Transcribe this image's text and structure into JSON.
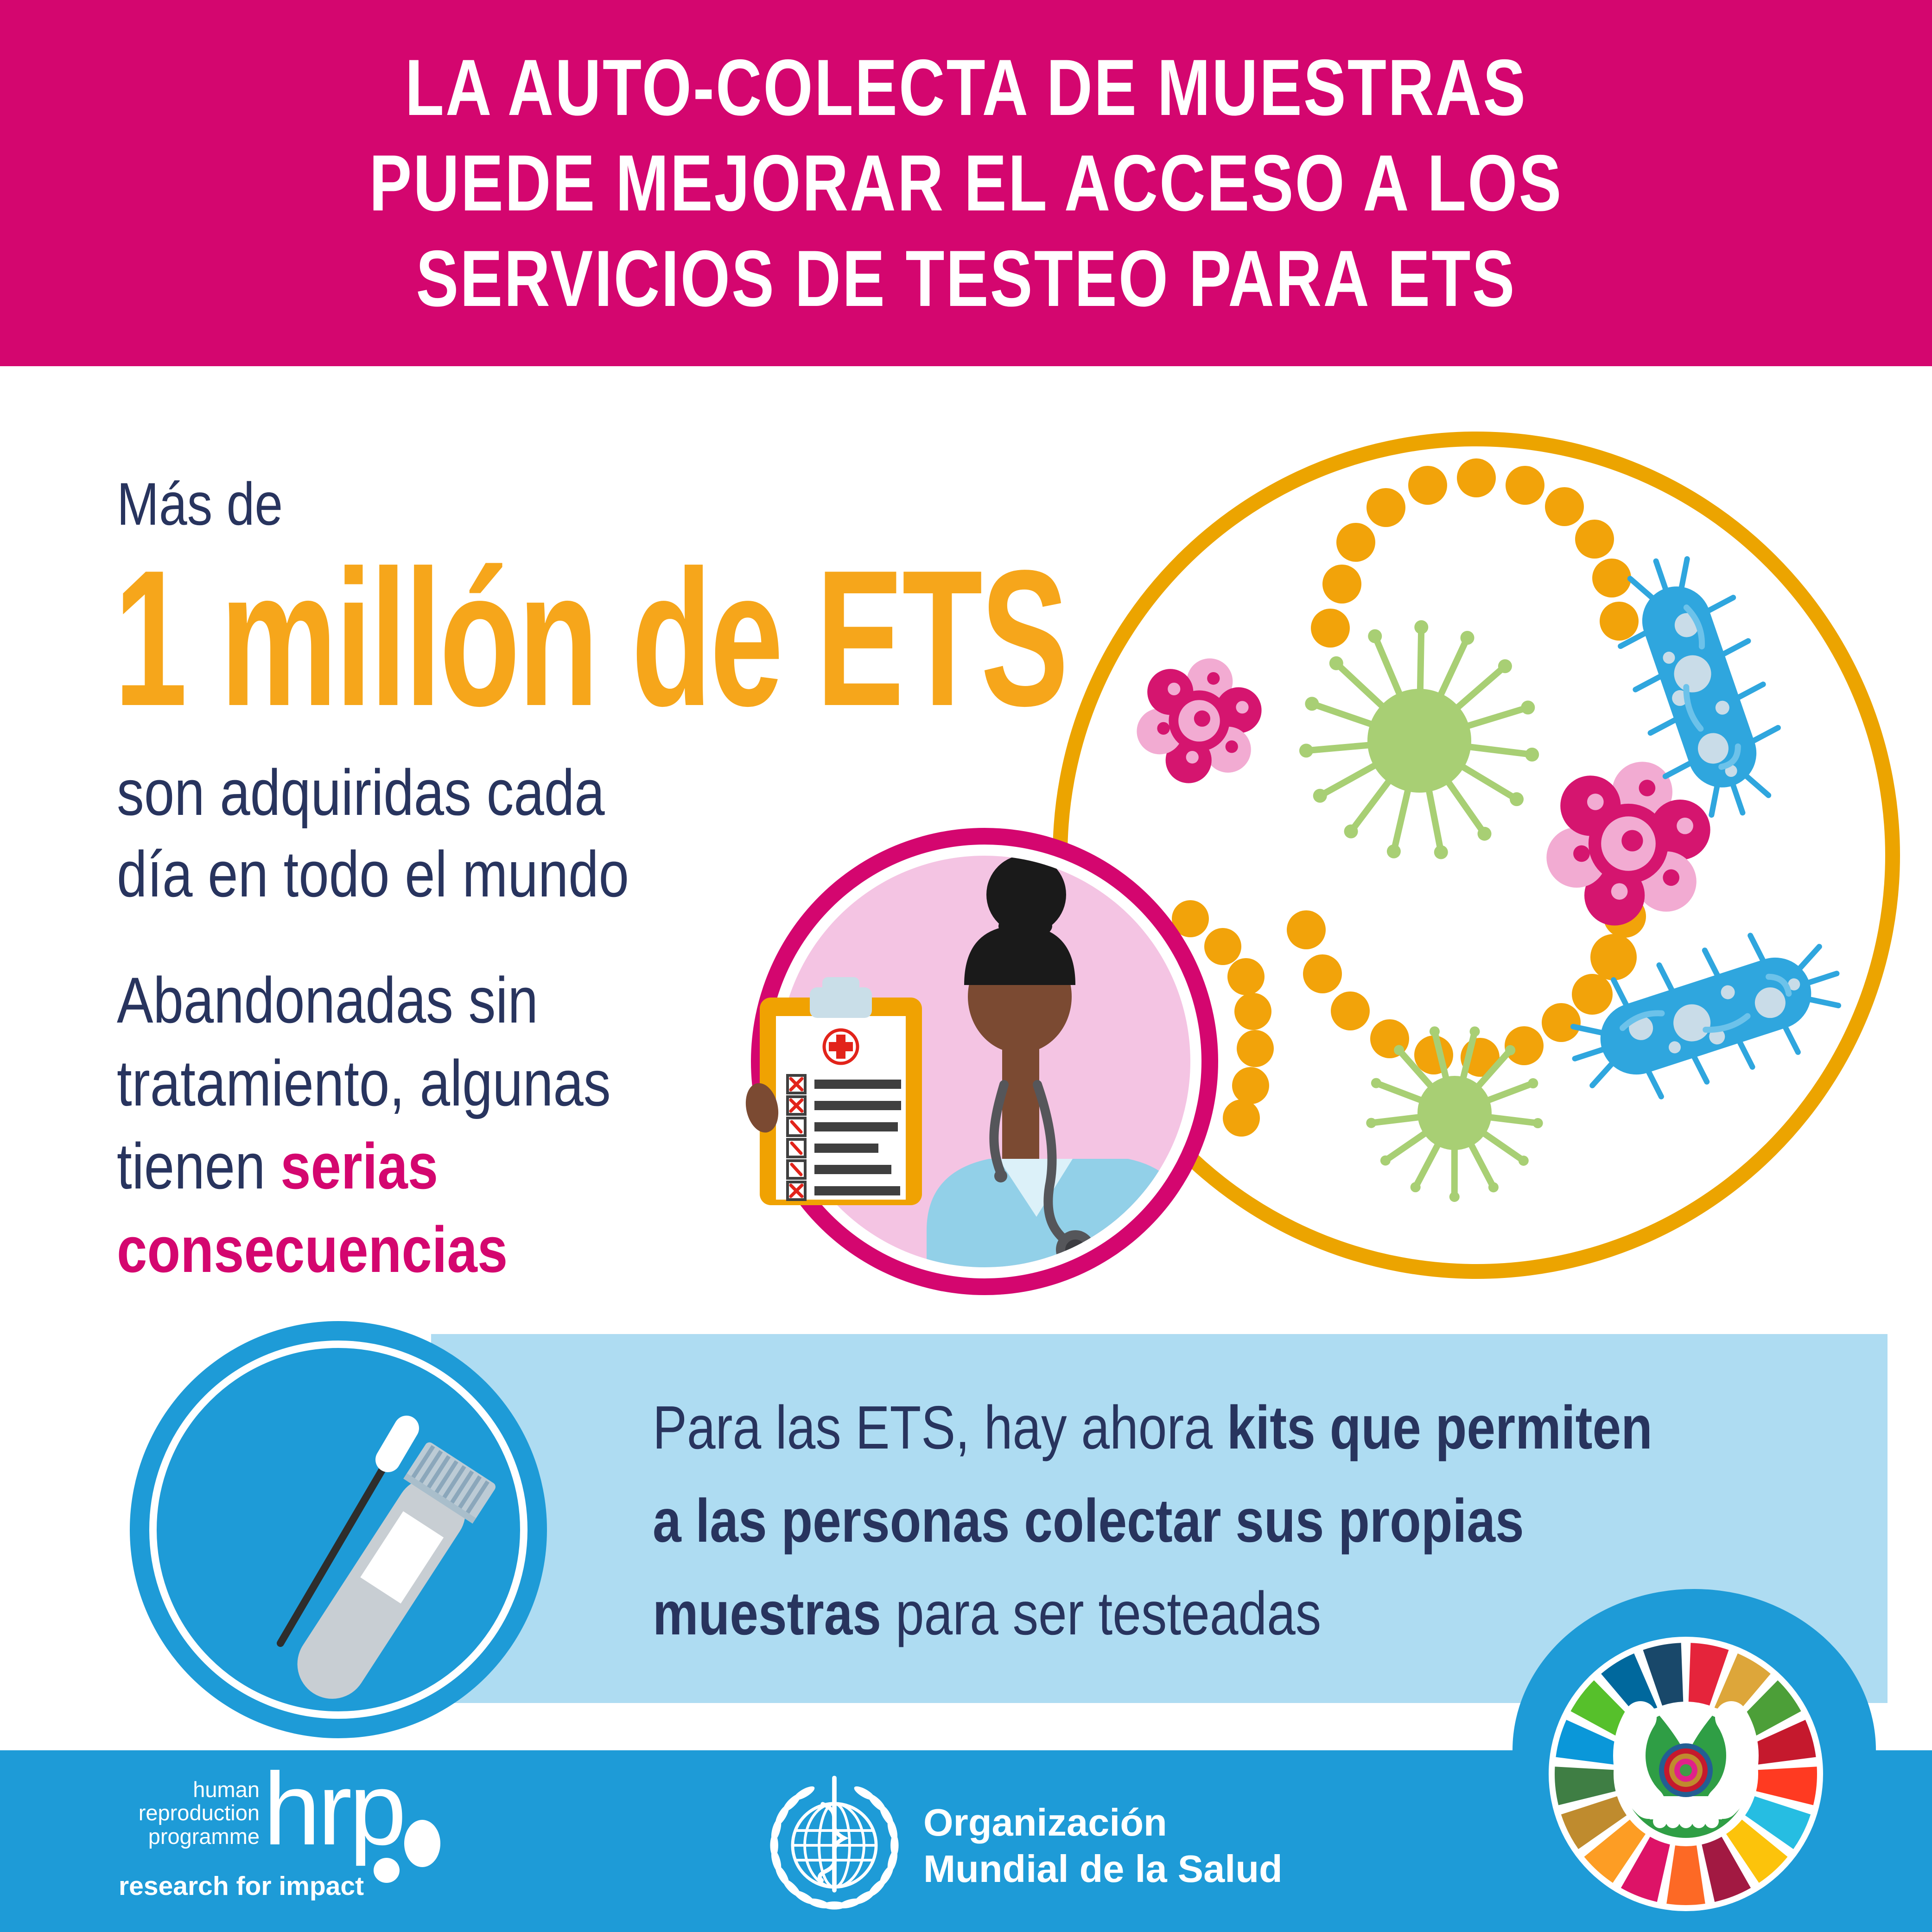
{
  "header": {
    "line1": "LA AUTO-COLECTA DE MUESTRAS",
    "line2": "PUEDE MEJORAR EL ACCESO A LOS",
    "line3": "SERVICIOS DE TESTEO PARA ETS"
  },
  "stat": {
    "intro": "Más de",
    "number": "1 millón de ETS",
    "desc1": "son adquiridas cada",
    "desc2": "día en todo el mundo",
    "warn1": "Abandonadas sin",
    "warn2": "tratamiento, algunas",
    "warn3_plain": "tienen ",
    "warn3_accent": "serias",
    "warn4_accent": "consecuencias"
  },
  "kits": {
    "l1_plain": "Para las ETS, hay ahora ",
    "l1_bold": "kits que permiten",
    "l2_bold": "a las personas colectar sus propias",
    "l3_bold": "muestras",
    "l3_plain": " para ser testeadas"
  },
  "footer": {
    "hrp_small1": "human",
    "hrp_small2": "reproduction",
    "hrp_small3": "programme",
    "hrp_big": "hrp",
    "hrp_tagline": "research for impact",
    "who_line1": "Organización",
    "who_line2": "Mundial de la Salud"
  },
  "worker": {
    "checklist_marks": [
      "x",
      "x",
      "slash",
      "slash",
      "slash",
      "x"
    ]
  },
  "icons": {
    "pathogen_circle": [
      "cocci-chain-icon",
      "virus-icon",
      "cell-cluster-icon",
      "bacterium-icon"
    ],
    "swab_circle": [
      "swab-icon",
      "test-tube-icon"
    ],
    "worker_circle": [
      "clipboard-icon",
      "health-worker-avatar"
    ],
    "footer": [
      "hrp-logo",
      "who-emblem-icon",
      "sdg-wheel-icon"
    ]
  },
  "colors": {
    "magenta": "#D4066F",
    "navy": "#28345E",
    "orange": "#F6A61B",
    "amber": "#ECA400",
    "cocci_orange": "#F2A30A",
    "clipboard_orange": "#F0A202",
    "band_blue": "#AEDCF2",
    "blue": "#1E9BD7",
    "pale_pink": "#F4C4E3",
    "virus_green": "#A8CF74",
    "bact_blue": "#2FA6DE",
    "bact_spot": "#C9DCE8",
    "bact_detail": "#6CC2EA",
    "cluster_pink": "#D5156F",
    "cluster_light": "#F2ABD2",
    "scrub_blue": "#92D0E8",
    "collar_blue": "#DCF1F9",
    "skin": "#7B4A32",
    "hair": "#1A1A1A",
    "steth_gray": "#55565A",
    "paper_gray": "#3F3F3F",
    "check_red": "#E2231A",
    "clip_gray": "#C9DEE8",
    "tube_gray": "#C8CED3",
    "cap_gray": "#BCCBD5",
    "cap_stripe": "#8BA7BB",
    "sdg_green": "#2F9E45",
    "sdg_rings": [
      "#235E93",
      "#C5192D",
      "#C08A2E",
      "#E0218A",
      "#3E9C47"
    ],
    "sdg": [
      "#E5243B",
      "#DDA63A",
      "#4C9F38",
      "#C5192D",
      "#FF3A21",
      "#26BDE2",
      "#FCC30B",
      "#A21942",
      "#FD6925",
      "#DD1367",
      "#FD9D24",
      "#BF8B2E",
      "#3F7E44",
      "#0A97D9",
      "#56C02B",
      "#00689D",
      "#19486A"
    ]
  }
}
